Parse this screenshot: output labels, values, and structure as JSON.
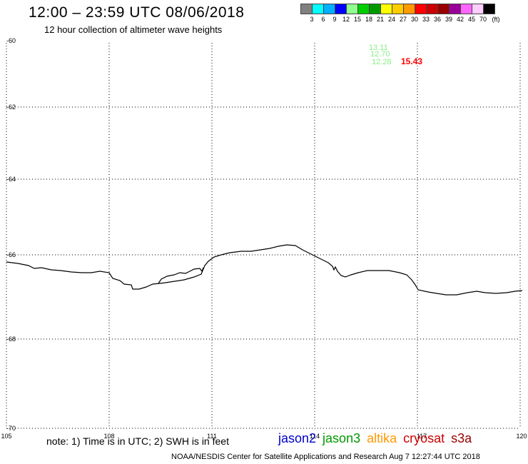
{
  "header": {
    "title": "12:00 – 23:59 UTC 08/06/2018",
    "subtitle": "12 hour collection of altimeter wave heights"
  },
  "legend": {
    "colors": [
      "#808080",
      "#00ffff",
      "#00b0ff",
      "#0000ff",
      "#90ff90",
      "#00cc00",
      "#009900",
      "#ffff00",
      "#ffcc00",
      "#ff9900",
      "#ff0000",
      "#cc0000",
      "#990000",
      "#990099",
      "#ff66ff",
      "#ffccff",
      "#000000"
    ],
    "labels": [
      "3",
      "6",
      "9",
      "12",
      "15",
      "18",
      "21",
      "24",
      "27",
      "30",
      "33",
      "36",
      "39",
      "42",
      "45",
      "70",
      "(ft)"
    ]
  },
  "map": {
    "y_labels": [
      "-60",
      "-62",
      "-64",
      "-66",
      "-68",
      "-70"
    ],
    "x_labels": [
      "105",
      "108",
      "111",
      "114",
      "117",
      "120"
    ],
    "wave_readings": [
      {
        "value": "13.11",
        "color": "#88ee88"
      },
      {
        "value": "12.70",
        "color": "#88ee88"
      },
      {
        "value": "12.28",
        "color": "#88ee88"
      },
      {
        "value": "15.43",
        "color": "#ff0000"
      }
    ]
  },
  "footer": {
    "note": "note: 1) Time is in UTC; 2) SWH is in feet",
    "satellites": [
      {
        "name": "jason2",
        "color": "#0000cc"
      },
      {
        "name": "jason3",
        "color": "#009900"
      },
      {
        "name": "altika",
        "color": "#ff9900"
      },
      {
        "name": "cryosat",
        "color": "#cc0000"
      },
      {
        "name": "s3a",
        "color": "#990000"
      }
    ],
    "credit": "NOAA/NESDIS Center for Satellite Applications and Research    Aug  7 12:27:44 UTC 2018"
  }
}
